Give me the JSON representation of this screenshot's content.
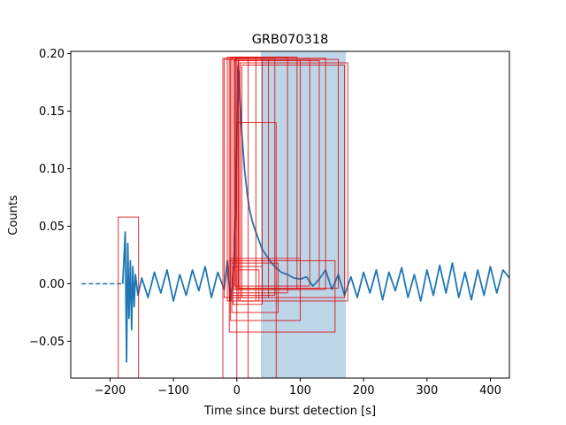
{
  "chart_data": {
    "type": "line",
    "title": "GRB070318",
    "xlabel": "Time since burst detection [s]",
    "ylabel": "Counts",
    "xlim": [
      -262,
      430
    ],
    "ylim": [
      -0.082,
      0.202
    ],
    "xticks": [
      -200,
      -100,
      0,
      100,
      200,
      300,
      400
    ],
    "xtick_labels": [
      "−200",
      "−100",
      "0",
      "100",
      "200",
      "300",
      "400"
    ],
    "yticks": [
      -0.05,
      0.0,
      0.05,
      0.1,
      0.15,
      0.2
    ],
    "ytick_labels": [
      "−0.05",
      "0.00",
      "0.05",
      "0.10",
      "0.15",
      "0.20"
    ],
    "grid": false,
    "shaded_interval": {
      "x0": 38,
      "x1": 172,
      "color": "#bcd6e8"
    },
    "dashed_segment": {
      "x0": -245,
      "x1": -180,
      "y": 0.0
    },
    "series": [
      {
        "color": "#1f77b4",
        "x": [
          -180,
          -176,
          -174,
          -172,
          -170,
          -168,
          -166,
          -164,
          -162,
          -160,
          -156,
          -150,
          -140,
          -130,
          -120,
          -110,
          -100,
          -90,
          -80,
          -70,
          -60,
          -50,
          -40,
          -30,
          -20,
          -15,
          -10,
          -6,
          -4,
          -2,
          0,
          1,
          2,
          3,
          4,
          5,
          6,
          8,
          10,
          12,
          14,
          16,
          18,
          20,
          24,
          28,
          32,
          36,
          40,
          45,
          50,
          55,
          60,
          70,
          80,
          90,
          100,
          110,
          120,
          130,
          140,
          150,
          160,
          170,
          180,
          190,
          200,
          210,
          220,
          230,
          240,
          250,
          260,
          270,
          280,
          290,
          300,
          310,
          320,
          330,
          340,
          350,
          360,
          370,
          380,
          390,
          400,
          410,
          420,
          430
        ],
        "y": [
          0.0,
          0.045,
          -0.068,
          0.035,
          -0.03,
          0.02,
          -0.04,
          0.015,
          -0.02,
          0.008,
          -0.01,
          0.005,
          -0.012,
          0.01,
          -0.008,
          0.012,
          -0.015,
          0.008,
          -0.01,
          0.012,
          -0.006,
          0.015,
          -0.012,
          0.01,
          -0.005,
          0.02,
          -0.015,
          0.005,
          0.03,
          0.06,
          0.12,
          0.18,
          0.19,
          0.185,
          0.175,
          0.16,
          0.15,
          0.13,
          0.115,
          0.1,
          0.09,
          0.08,
          0.072,
          0.065,
          0.055,
          0.048,
          0.042,
          0.036,
          0.03,
          0.026,
          0.022,
          0.018,
          0.015,
          0.01,
          0.008,
          0.005,
          0.004,
          0.006,
          -0.002,
          0.004,
          0.012,
          -0.005,
          0.008,
          -0.01,
          0.006,
          -0.012,
          0.01,
          -0.008,
          0.012,
          -0.014,
          0.01,
          -0.006,
          0.014,
          -0.012,
          0.008,
          -0.015,
          0.012,
          -0.01,
          0.016,
          -0.008,
          0.018,
          -0.012,
          0.01,
          -0.014,
          0.012,
          -0.01,
          0.015,
          -0.008,
          0.012,
          0.005
        ]
      }
    ],
    "boxes": [
      {
        "x0": -187,
        "x1": -155,
        "y0": -0.083,
        "y1": 0.058
      },
      {
        "x0": -22,
        "x1": 18,
        "y0": -0.083,
        "y1": 0.196
      },
      {
        "x0": -20,
        "x1": 50,
        "y0": -0.012,
        "y1": 0.195
      },
      {
        "x0": -15,
        "x1": 30,
        "y0": -0.015,
        "y1": 0.197
      },
      {
        "x0": -12,
        "x1": 40,
        "y0": -0.012,
        "y1": 0.195
      },
      {
        "x0": -10,
        "x1": 60,
        "y0": -0.01,
        "y1": 0.196
      },
      {
        "x0": -8,
        "x1": 80,
        "y0": -0.008,
        "y1": 0.197
      },
      {
        "x0": -5,
        "x1": 100,
        "y0": -0.005,
        "y1": 0.194
      },
      {
        "x0": -3,
        "x1": 115,
        "y0": -0.002,
        "y1": 0.195
      },
      {
        "x0": -2,
        "x1": 140,
        "y0": -0.005,
        "y1": 0.196
      },
      {
        "x0": 0,
        "x1": 95,
        "y0": -0.005,
        "y1": 0.197
      },
      {
        "x0": 2,
        "x1": 130,
        "y0": -0.004,
        "y1": 0.194
      },
      {
        "x0": 3,
        "x1": 160,
        "y0": -0.004,
        "y1": 0.195
      },
      {
        "x0": 5,
        "x1": 175,
        "y0": -0.015,
        "y1": 0.192
      },
      {
        "x0": 8,
        "x1": 170,
        "y0": -0.012,
        "y1": 0.19
      },
      {
        "x0": -12,
        "x1": 155,
        "y0": -0.042,
        "y1": 0.02
      },
      {
        "x0": -10,
        "x1": 100,
        "y0": -0.032,
        "y1": 0.022
      },
      {
        "x0": -8,
        "x1": 65,
        "y0": -0.025,
        "y1": 0.018
      },
      {
        "x0": -6,
        "x1": 40,
        "y0": -0.018,
        "y1": 0.015
      },
      {
        "x0": 2,
        "x1": 35,
        "y0": -0.015,
        "y1": 0.012
      },
      {
        "x0": 0,
        "x1": 62,
        "y0": -0.083,
        "y1": 0.14
      }
    ]
  }
}
